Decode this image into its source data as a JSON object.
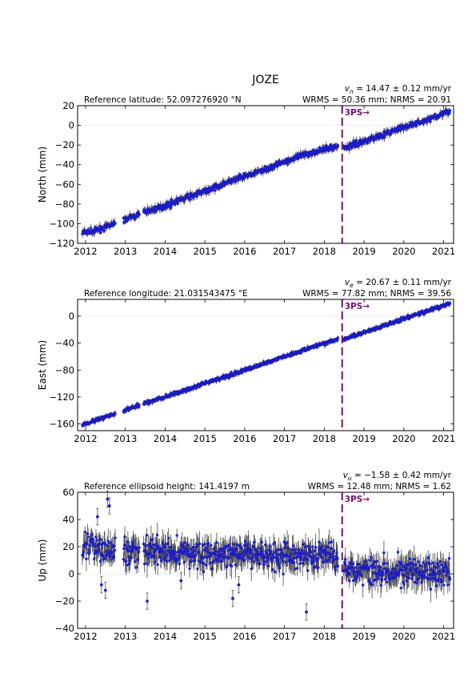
{
  "figure": {
    "title": "JOZE"
  },
  "colors": {
    "point": "#1f1fe6",
    "point_edge": "#1010a0",
    "errorbar": "#4a4a4a",
    "event": "#7a0a7a",
    "grid": "#dddddd"
  },
  "chart_data": [
    {
      "type": "scatter",
      "ylabel": "North (mm)",
      "xlabel": "",
      "xlim": [
        2011.8,
        2021.25
      ],
      "ylim": [
        -120,
        20
      ],
      "y_ticks": [
        -120,
        -100,
        -80,
        -60,
        -40,
        -20,
        0,
        20
      ],
      "x_ticks": [
        2012,
        2013,
        2014,
        2015,
        2016,
        2017,
        2018,
        2019,
        2020,
        2021
      ],
      "reference_text": "Reference latitude: 52.097276920 °N",
      "velocity_text": [
        "v",
        "n",
        " = 14.47 ± 0.12 mm/yr"
      ],
      "stats_text": "WRMS = 50.36 mm; NRMS = 20.91",
      "event": {
        "x": 2018.45,
        "label": "3PS→"
      },
      "trend": [
        [
          2011.9,
          -110
        ],
        [
          2018.4,
          -21
        ],
        [
          2018.5,
          -23
        ],
        [
          2021.15,
          14
        ]
      ],
      "series": [
        {
          "values": [
            [
              2011.9,
              -109
            ],
            [
              2012.2,
              -108
            ],
            [
              2012.6,
              -102
            ],
            [
              2013.0,
              -96
            ],
            [
              2013.5,
              -88
            ],
            [
              2014.0,
              -82
            ],
            [
              2014.5,
              -74
            ],
            [
              2015.0,
              -67
            ],
            [
              2015.5,
              -59
            ],
            [
              2016.0,
              -52
            ],
            [
              2016.5,
              -45
            ],
            [
              2017.0,
              -37
            ],
            [
              2017.5,
              -30
            ],
            [
              2018.0,
              -24
            ],
            [
              2018.4,
              -21
            ],
            [
              2018.5,
              -23
            ],
            [
              2019.0,
              -16
            ],
            [
              2019.5,
              -9
            ],
            [
              2020.0,
              -2
            ],
            [
              2020.5,
              4
            ],
            [
              2021.0,
              12
            ],
            [
              2021.15,
              14
            ]
          ]
        }
      ],
      "noise": {
        "scatter": 2.0,
        "error": 3.0
      }
    },
    {
      "type": "scatter",
      "ylabel": "East (mm)",
      "xlabel": "",
      "xlim": [
        2011.8,
        2021.25
      ],
      "ylim": [
        -170,
        25
      ],
      "y_ticks": [
        -160,
        -120,
        -80,
        -40,
        0
      ],
      "x_ticks": [
        2012,
        2013,
        2014,
        2015,
        2016,
        2017,
        2018,
        2019,
        2020,
        2021
      ],
      "reference_text": "Reference longitude: 21.031543475 °E",
      "velocity_text": [
        "v",
        "e",
        " = 20.67 ± 0.11 mm/yr"
      ],
      "stats_text": "WRMS = 77.82 mm; NRMS = 39.56",
      "event": {
        "x": 2018.45,
        "label": "3PS→"
      },
      "trend": [
        [
          2011.9,
          -161
        ],
        [
          2018.4,
          -33
        ],
        [
          2018.5,
          -34
        ],
        [
          2021.15,
          20
        ]
      ],
      "series": [
        {
          "values": [
            [
              2011.9,
              -161
            ],
            [
              2012.5,
              -150
            ],
            [
              2013.0,
              -140
            ],
            [
              2013.5,
              -129
            ],
            [
              2014.0,
              -120
            ],
            [
              2014.5,
              -110
            ],
            [
              2015.0,
              -100
            ],
            [
              2015.5,
              -90
            ],
            [
              2016.0,
              -80
            ],
            [
              2016.5,
              -70
            ],
            [
              2017.0,
              -60
            ],
            [
              2017.5,
              -50
            ],
            [
              2018.0,
              -40
            ],
            [
              2018.4,
              -33
            ],
            [
              2018.5,
              -34
            ],
            [
              2019.0,
              -24
            ],
            [
              2019.5,
              -14
            ],
            [
              2020.0,
              -4
            ],
            [
              2020.5,
              6
            ],
            [
              2021.0,
              16
            ],
            [
              2021.15,
              20
            ]
          ]
        }
      ],
      "noise": {
        "scatter": 2.0,
        "error": 3.0
      }
    },
    {
      "type": "scatter",
      "ylabel": "Up (mm)",
      "xlabel": "",
      "xlim": [
        2011.8,
        2021.25
      ],
      "ylim": [
        -40,
        60
      ],
      "y_ticks": [
        -40,
        -20,
        0,
        20,
        40,
        60
      ],
      "x_ticks": [
        2012,
        2013,
        2014,
        2015,
        2016,
        2017,
        2018,
        2019,
        2020,
        2021
      ],
      "reference_text": "Reference ellipsoid height: 141.4197 m",
      "velocity_text": [
        "v",
        "u",
        " = −1.58 ± 0.42 mm/yr"
      ],
      "stats_text": "WRMS = 12.48 mm; NRMS = 1.62",
      "event": {
        "x": 2018.45,
        "label": "3PS→"
      },
      "trend": [
        [
          2011.9,
          20
        ],
        [
          2018.4,
          14
        ],
        [
          2018.5,
          4
        ],
        [
          2021.15,
          0
        ]
      ],
      "series": [
        {
          "values": [
            [
              2011.9,
              22
            ],
            [
              2012.5,
              18
            ],
            [
              2013.0,
              16
            ],
            [
              2013.5,
              17
            ],
            [
              2014.0,
              16
            ],
            [
              2014.5,
              15
            ],
            [
              2015.0,
              14
            ],
            [
              2015.5,
              14
            ],
            [
              2016.0,
              15
            ],
            [
              2016.5,
              14
            ],
            [
              2017.0,
              13
            ],
            [
              2017.5,
              14
            ],
            [
              2018.0,
              14
            ],
            [
              2018.4,
              13
            ],
            [
              2018.5,
              4
            ],
            [
              2019.0,
              3
            ],
            [
              2019.5,
              3
            ],
            [
              2020.0,
              2
            ],
            [
              2020.5,
              1
            ],
            [
              2021.0,
              0
            ],
            [
              2021.15,
              0
            ]
          ]
        }
      ],
      "outliers": [
        [
          2012.3,
          42
        ],
        [
          2012.55,
          55
        ],
        [
          2012.6,
          50
        ],
        [
          2012.4,
          -8
        ],
        [
          2012.5,
          -12
        ],
        [
          2013.55,
          -20
        ],
        [
          2015.7,
          -18
        ],
        [
          2017.55,
          -28
        ],
        [
          2014.4,
          -5
        ],
        [
          2015.85,
          -8
        ]
      ],
      "noise": {
        "scatter": 7.0,
        "error": 7.0
      }
    }
  ]
}
